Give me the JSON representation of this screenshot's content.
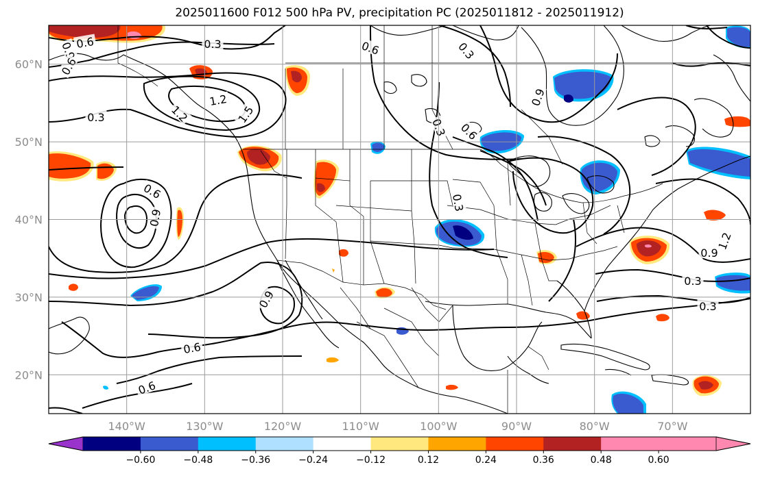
{
  "title": "2025011600 F012 500 hPa PV, precipitation PC (2025011812 - 2025011912)",
  "map": {
    "lon_ticks": [
      "140°W",
      "130°W",
      "120°W",
      "110°W",
      "100°W",
      "90°W",
      "80°W",
      "70°W"
    ],
    "lat_ticks": [
      "60°N",
      "50°N",
      "40°N",
      "30°N",
      "20°N"
    ],
    "lon_values": [
      -140,
      -130,
      -120,
      -110,
      -100,
      -90,
      -80,
      -70
    ],
    "lat_values": [
      60,
      50,
      40,
      30,
      20
    ],
    "lon_range": [
      -150,
      -60
    ],
    "lat_range": [
      15,
      65
    ],
    "grid": true
  },
  "contour_labels": [
    "0.6",
    "0.3",
    "0.9",
    "0.6",
    "1.2",
    "1.2",
    "0.3",
    "1.5",
    "0.3",
    "0.6",
    "0.3",
    "0.6",
    "0.9",
    "0.3",
    "0.9",
    "0.6",
    "0.6",
    "0.9",
    "1.2",
    "0.9",
    "0.3",
    "0.3",
    "0.6"
  ],
  "colorbar": {
    "labels": [
      "−0.60",
      "−0.48",
      "−0.36",
      "−0.24",
      "−0.12",
      "0.12",
      "0.24",
      "0.36",
      "0.48",
      "0.60"
    ],
    "colors": [
      "#9933cc",
      "#000080",
      "#3a5bd0",
      "#00bfff",
      "#b0e0ff",
      "#ffffff",
      "#ffe97f",
      "#ffa500",
      "#ff4500",
      "#b22222",
      "#ff88b0",
      "#ff88b0"
    ]
  },
  "colors": {
    "pos_low": "#ffe97f",
    "pos_mid": "#ffa500",
    "pos_high": "#ff4500",
    "pos_vhigh": "#b22222",
    "pos_max": "#ff88b0",
    "neg_low": "#00bfff",
    "neg_mid": "#3a5bd0",
    "neg_high": "#000080"
  }
}
